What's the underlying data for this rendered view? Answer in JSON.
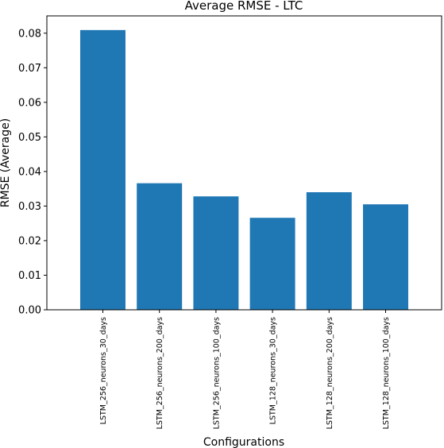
{
  "chart_data": {
    "type": "bar",
    "title": "Average RMSE - LTC",
    "xlabel": "Configurations",
    "ylabel": "RMSE (Average)",
    "categories": [
      "LSTM_256_neurons_30_days",
      "LSTM_256_neurons_200_days",
      "LSTM_256_neurons_100_days",
      "LSTM_128_neurons_30_days",
      "LSTM_128_neurons_200_days",
      "LSTM_128_neurons_100_days"
    ],
    "values": [
      0.0809,
      0.0366,
      0.0328,
      0.0266,
      0.034,
      0.0305
    ],
    "ylim": [
      0,
      0.085
    ],
    "yticks": [
      0.0,
      0.01,
      0.02,
      0.03,
      0.04,
      0.05,
      0.06,
      0.07,
      0.08
    ],
    "ytick_labels": [
      "0.00",
      "0.01",
      "0.02",
      "0.03",
      "0.04",
      "0.05",
      "0.06",
      "0.07",
      "0.08"
    ],
    "bar_color": "#1f77b4",
    "grid": false,
    "legend": "none"
  }
}
